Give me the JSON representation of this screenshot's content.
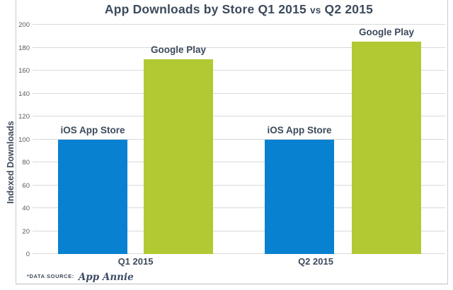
{
  "title_parts": {
    "main": "App Downloads by Store  Q1 2015",
    "vs": "vs",
    "tail": "Q2 2015"
  },
  "footer": {
    "prefix": "*DATA SOURCE:",
    "source": "App Annie"
  },
  "colors": {
    "navy_text": "#3c4a5b",
    "ios_blue": "#0881d1",
    "google_green": "#b2c934",
    "gridline": "#d9d9d9",
    "tick_text": "#595959",
    "card_border": "#c9cccf"
  },
  "chart_data": {
    "type": "bar",
    "title": "App Downloads by Store  Q1 2015 vs Q2 2015",
    "xlabel": "",
    "ylabel": "Indexed Downloads",
    "ylim": [
      0,
      200
    ],
    "ytick_step": 20,
    "grid": true,
    "legend_position": "labels-above-bars",
    "categories": [
      "Q1 2015",
      "Q2 2015"
    ],
    "series": [
      {
        "name": "iOS App Store",
        "color": "#0881d1",
        "values": [
          100,
          100
        ]
      },
      {
        "name": "Google Play",
        "color": "#b2c934",
        "values": [
          170,
          185
        ]
      }
    ]
  }
}
